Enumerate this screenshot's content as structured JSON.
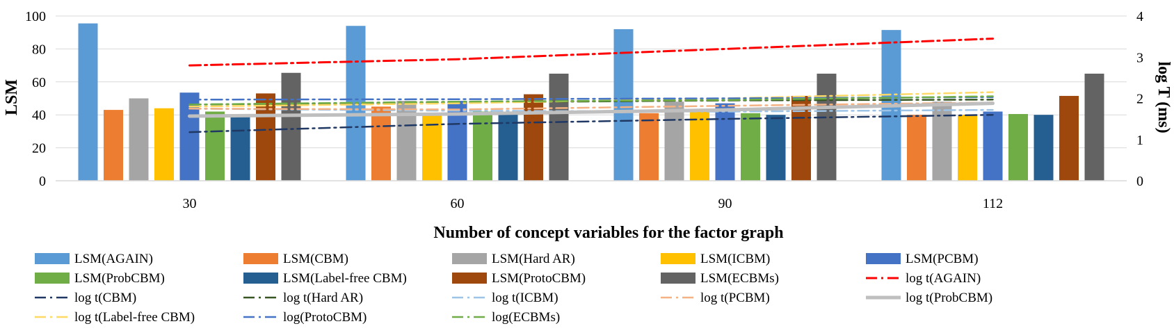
{
  "chart_data": {
    "type": "bar",
    "categories": [
      "30",
      "60",
      "90",
      "112"
    ],
    "xlabel": "Number of concept variables for the factor graph",
    "ylabel": "LSM",
    "y2label": "log T (ms)",
    "ylim": [
      0,
      100
    ],
    "y_ticks": [
      "0",
      "20",
      "40",
      "60",
      "80",
      "100"
    ],
    "y2lim": [
      0,
      4
    ],
    "y2_ticks": [
      "0",
      "1",
      "2",
      "3",
      "4"
    ],
    "grid": true,
    "legend_position": "bottom",
    "bar_series": [
      {
        "name": "LSM(AGAIN)",
        "color": "#5B9BD5",
        "values": [
          95.5,
          94,
          92,
          91.5
        ]
      },
      {
        "name": "LSM(CBM)",
        "color": "#ED7D31",
        "values": [
          43,
          45,
          41,
          40
        ]
      },
      {
        "name": "LSM(Hard AR)",
        "color": "#A5A5A5",
        "values": [
          50,
          48.5,
          48,
          48
        ]
      },
      {
        "name": "LSM(ICBM)",
        "color": "#FFC000",
        "values": [
          44,
          40,
          43,
          40
        ]
      },
      {
        "name": "LSM(PCBM)",
        "color": "#4472C4",
        "values": [
          53.5,
          48.5,
          47,
          42
        ]
      },
      {
        "name": "LSM(ProbCBM)",
        "color": "#70AD47",
        "values": [
          42,
          42,
          41,
          40.5
        ]
      },
      {
        "name": "LSM(Label-free CBM)",
        "color": "#255E91",
        "values": [
          40,
          40.5,
          40,
          40
        ]
      },
      {
        "name": "LSM(ProtoCBM)",
        "color": "#9E480E",
        "values": [
          53,
          52.5,
          51.5,
          51.5
        ]
      },
      {
        "name": "LSM(ECBMs)",
        "color": "#636363",
        "values": [
          65.5,
          65,
          65,
          65
        ]
      }
    ],
    "line_series": [
      {
        "name": "log t(AGAIN)",
        "color": "#FF0000",
        "dash": "dashdot",
        "width": 3,
        "values": [
          2.8,
          2.95,
          3.2,
          3.45
        ]
      },
      {
        "name": "log t(CBM)",
        "color": "#203864",
        "dash": "dashdot",
        "width": 2.5,
        "values": [
          1.18,
          1.38,
          1.5,
          1.6
        ]
      },
      {
        "name": "log t(Hard AR)",
        "color": "#375623",
        "dash": "dashdot",
        "width": 2.5,
        "values": [
          1.85,
          1.9,
          1.95,
          1.97
        ]
      },
      {
        "name": "log t(ICBM)",
        "color": "#9DC3E6",
        "dash": "dashdot",
        "width": 2.5,
        "values": [
          1.75,
          1.7,
          1.68,
          1.72
        ]
      },
      {
        "name": "log t(PCBM)",
        "color": "#F4B183",
        "dash": "dashdot",
        "width": 2.5,
        "values": [
          1.75,
          1.73,
          1.82,
          1.9
        ]
      },
      {
        "name": "log t(ProbCBM)",
        "color": "#BFBFBF",
        "dash": "solid",
        "width": 5,
        "values": [
          1.57,
          1.62,
          1.72,
          1.88
        ]
      },
      {
        "name": "log t(Label-free CBM)",
        "color": "#FFD966",
        "dash": "dashdot",
        "width": 2.5,
        "values": [
          1.8,
          1.88,
          2.0,
          2.15
        ]
      },
      {
        "name": "log(ProtoCBM)",
        "color": "#4472C4",
        "dash": "dashdot",
        "width": 2.5,
        "values": [
          1.97,
          1.98,
          2.0,
          2.03
        ]
      },
      {
        "name": "log(ECBMs)",
        "color": "#70AD47",
        "dash": "dashdot",
        "width": 2.5,
        "values": [
          1.85,
          1.92,
          1.96,
          2.05
        ]
      }
    ]
  }
}
